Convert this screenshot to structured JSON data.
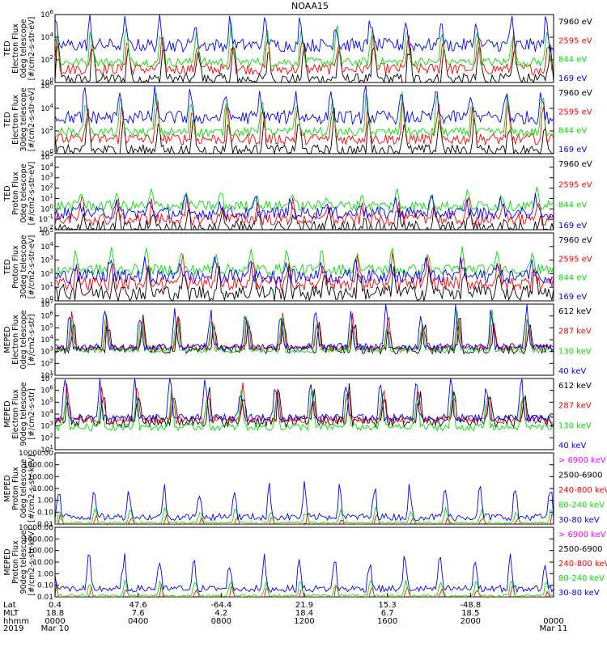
{
  "title": "NOAA15",
  "colors": {
    "black": "#000000",
    "red": "#ff0000",
    "green": "#00e000",
    "blue": "#0000ff",
    "magenta": "#ff00ff"
  },
  "chart_data": [
    {
      "type": "line",
      "ylabel": [
        "TED",
        "Electron Flux",
        "0deg telescope",
        "[#/cm2-s-str-eV]"
      ],
      "ylog": true,
      "ylim": [
        1,
        1000000
      ],
      "yticks": [
        "10^0",
        "10^2",
        "10^4",
        "10^6"
      ],
      "series": [
        {
          "name": "7960 eV",
          "color": "#000000",
          "base": 0.3,
          "noise": 0.5,
          "amp": 3.5
        },
        {
          "name": "2595 eV",
          "color": "#ff0000",
          "base": 1.2,
          "noise": 0.5,
          "amp": 3.2
        },
        {
          "name": "844 eV",
          "color": "#00e000",
          "base": 1.8,
          "noise": 0.4,
          "amp": 3.6
        },
        {
          "name": "169 eV",
          "color": "#0000ff",
          "base": 3.3,
          "noise": 0.6,
          "amp": 2.6
        }
      ]
    },
    {
      "type": "line",
      "ylabel": [
        "TED",
        "Electron Flux",
        "30deg telescope",
        "[#/cm2-s-str-eV]"
      ],
      "ylog": true,
      "ylim": [
        1,
        1000000
      ],
      "yticks": [
        "10^0",
        "10^2",
        "10^4",
        "10^6"
      ],
      "series": [
        {
          "name": "7960 eV",
          "color": "#000000",
          "base": 0.3,
          "noise": 0.5,
          "amp": 3.4
        },
        {
          "name": "2595 eV",
          "color": "#ff0000",
          "base": 1.3,
          "noise": 0.5,
          "amp": 3.3
        },
        {
          "name": "844 eV",
          "color": "#00e000",
          "base": 1.9,
          "noise": 0.4,
          "amp": 3.7
        },
        {
          "name": "169 eV",
          "color": "#0000ff",
          "base": 3.2,
          "noise": 0.6,
          "amp": 2.6
        }
      ]
    },
    {
      "type": "line",
      "ylabel": [
        "TED",
        "Proton Flux",
        "0deg telescope",
        "[#/cm2-s-str-eV]"
      ],
      "ylog": true,
      "ylim": [
        0.01,
        100000
      ],
      "yticks": [
        "10^-2",
        "10^-1",
        "10^0",
        "10^1",
        "10^2",
        "10^3",
        "10^4",
        "10^5"
      ],
      "series": [
        {
          "name": "7960 eV",
          "color": "#000000",
          "base": 0.1,
          "noise": 0.8,
          "amp": 1.8
        },
        {
          "name": "2595 eV",
          "color": "#ff0000",
          "base": 1.0,
          "noise": 0.6,
          "amp": 2.0
        },
        {
          "name": "844 eV",
          "color": "#00e000",
          "base": 2.3,
          "noise": 0.5,
          "amp": 1.6
        },
        {
          "name": "169 eV",
          "color": "#0000ff",
          "base": 1.6,
          "noise": 0.6,
          "amp": 1.5
        }
      ]
    },
    {
      "type": "line",
      "ylabel": [
        "TED",
        "Proton Flux",
        "30deg telescope",
        "[#/cm2-s-str-eV]"
      ],
      "ylog": true,
      "ylim": [
        1,
        100000
      ],
      "yticks": [
        "10^0",
        "10^1",
        "10^2",
        "10^3",
        "10^4",
        "10^5"
      ],
      "series": [
        {
          "name": "7960 eV",
          "color": "#000000",
          "base": 0.6,
          "noise": 0.6,
          "amp": 1.8
        },
        {
          "name": "2595 eV",
          "color": "#ff0000",
          "base": 1.3,
          "noise": 0.5,
          "amp": 2.0
        },
        {
          "name": "844 eV",
          "color": "#00e000",
          "base": 2.3,
          "noise": 0.4,
          "amp": 1.6
        },
        {
          "name": "169 eV",
          "color": "#0000ff",
          "base": 1.8,
          "noise": 0.5,
          "amp": 1.4
        }
      ]
    },
    {
      "type": "line",
      "ylabel": [
        "MEPED",
        "Electron Flux",
        "0deg telescope",
        "[#/cm2-s-str]"
      ],
      "ylog": true,
      "ylim": [
        10,
        10000000
      ],
      "yticks": [
        "10^1",
        "10^2",
        "10^3",
        "10^4",
        "10^5",
        "10^6",
        "10^7"
      ],
      "series": [
        {
          "name": "612 keV",
          "color": "#000000",
          "base": 2.2,
          "noise": 0.4,
          "amp": 2.8
        },
        {
          "name": "287 keV",
          "color": "#ff0000",
          "base": 2.3,
          "noise": 0.2,
          "amp": 3.2
        },
        {
          "name": "130 keV",
          "color": "#00e000",
          "base": 2.1,
          "noise": 0.2,
          "amp": 3.4
        },
        {
          "name": "40 keV",
          "color": "#0000ff",
          "base": 2.4,
          "noise": 0.3,
          "amp": 3.9
        }
      ]
    },
    {
      "type": "line",
      "ylabel": [
        "MEPED",
        "Electron Flux",
        "90deg telescope",
        "[#/cm2-s-str]"
      ],
      "ylog": true,
      "ylim": [
        10,
        10000000
      ],
      "yticks": [
        "10^1",
        "10^2",
        "10^3",
        "10^4",
        "10^5",
        "10^6",
        "10^7"
      ],
      "series": [
        {
          "name": "612 keV",
          "color": "#000000",
          "base": 2.4,
          "noise": 0.5,
          "amp": 2.9
        },
        {
          "name": "287 keV",
          "color": "#ff0000",
          "base": 2.5,
          "noise": 0.3,
          "amp": 3.0
        },
        {
          "name": "130 keV",
          "color": "#00e000",
          "base": 1.9,
          "noise": 0.3,
          "amp": 3.5
        },
        {
          "name": "40 keV",
          "color": "#0000ff",
          "base": 2.7,
          "noise": 0.3,
          "amp": 3.8
        }
      ]
    },
    {
      "type": "line",
      "ylabel": [
        "MEPED",
        "Proton Flux",
        "0deg telescope",
        "[#/cm2-s-str-keV]"
      ],
      "ylog": true,
      "ylim": [
        0.01,
        10000
      ],
      "yticks": [
        "0.01",
        "0.10",
        "1.00",
        "10.00",
        "100.00",
        "1000.00",
        "10000.00"
      ],
      "series": [
        {
          "name": "> 6900 keV",
          "color": "#ff00ff",
          "base": -1.3,
          "noise": 0.3,
          "amp": 1.0
        },
        {
          "name": "2500-6900",
          "color": "#000000",
          "base": -1.8,
          "noise": 0.2,
          "amp": 1.8
        },
        {
          "name": "240-800 keV",
          "color": "#ff0000",
          "base": -0.6,
          "noise": 0.2,
          "amp": 1.6
        },
        {
          "name": "80-240 keV",
          "color": "#00e000",
          "base": 0.1,
          "noise": 0.1,
          "amp": 1.4
        },
        {
          "name": "30-80 keV",
          "color": "#0000ff",
          "base": 0.6,
          "noise": 0.3,
          "amp": 3.0
        }
      ]
    },
    {
      "type": "line",
      "ylabel": [
        "MEPED",
        "Proton Flux",
        "90deg telescope",
        "[#/cm2-s-str-keV]"
      ],
      "ylog": true,
      "ylim": [
        0.01,
        10000
      ],
      "yticks": [
        "0.01",
        "0.10",
        "1.00",
        "10.00",
        "100.00",
        "1000.00",
        "10000.00"
      ],
      "series": [
        {
          "name": "> 6900 keV",
          "color": "#ff00ff",
          "base": -1.4,
          "noise": 0.3,
          "amp": 1.0
        },
        {
          "name": "2500-6900",
          "color": "#000000",
          "base": -1.8,
          "noise": 0.2,
          "amp": 1.8
        },
        {
          "name": "240-800 keV",
          "color": "#ff0000",
          "base": -0.6,
          "noise": 0.2,
          "amp": 1.7
        },
        {
          "name": "80-240 keV",
          "color": "#00e000",
          "base": 0.1,
          "noise": 0.1,
          "amp": 1.5
        },
        {
          "name": "30-80 keV",
          "color": "#0000ff",
          "base": 0.7,
          "noise": 0.3,
          "amp": 3.1
        }
      ]
    }
  ],
  "xaxis": {
    "row_labels": [
      "Lat",
      "MLT",
      "hhmm",
      "2019"
    ],
    "ticks": [
      {
        "lat": "0.4",
        "mlt": "18.8",
        "hhmm": "0000",
        "date": "Mar 10"
      },
      {
        "lat": "47.6",
        "mlt": "7.6",
        "hhmm": "0400",
        "date": ""
      },
      {
        "lat": "-64.4",
        "mlt": "4.2",
        "hhmm": "0800",
        "date": ""
      },
      {
        "lat": "21.9",
        "mlt": "18.4",
        "hhmm": "1200",
        "date": ""
      },
      {
        "lat": "15.3",
        "mlt": "6.7",
        "hhmm": "1600",
        "date": ""
      },
      {
        "lat": "-48.8",
        "mlt": "18.5",
        "hhmm": "2000",
        "date": ""
      },
      {
        "lat": "",
        "mlt": "",
        "hhmm": "0000",
        "date": "Mar 11"
      }
    ]
  }
}
